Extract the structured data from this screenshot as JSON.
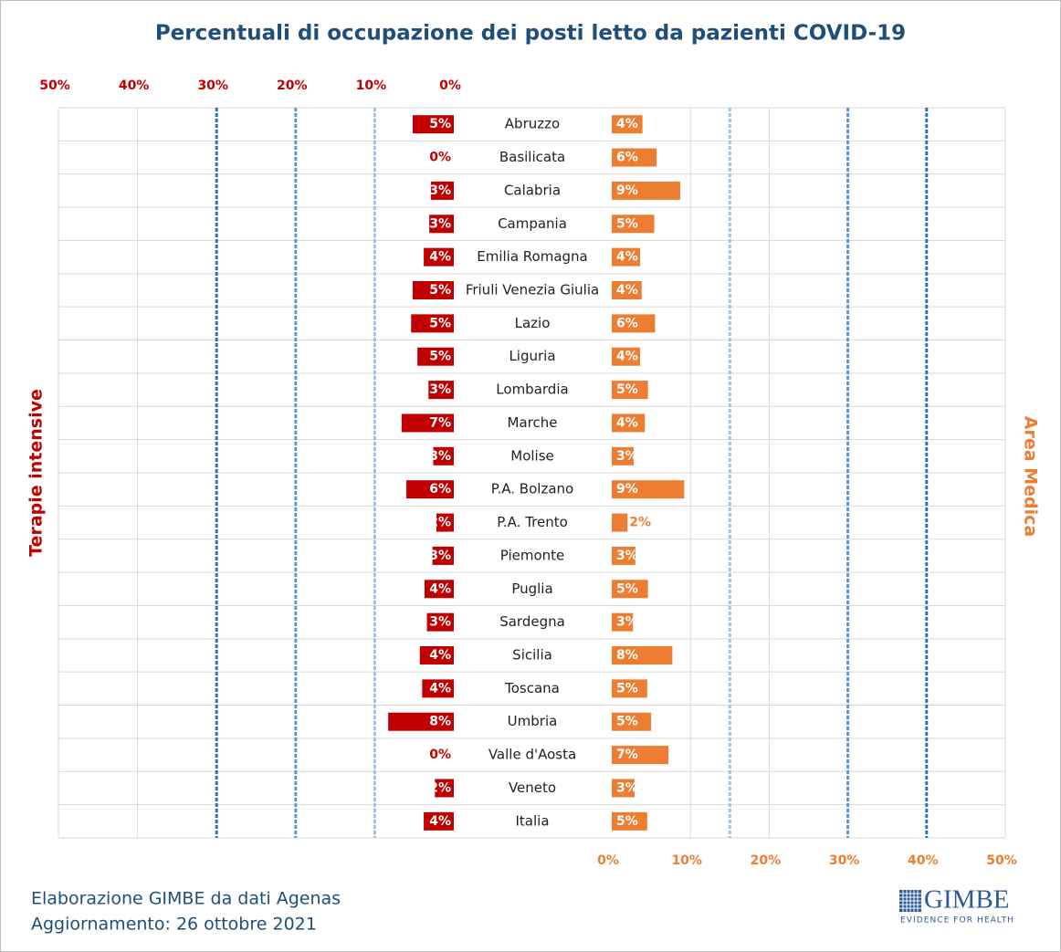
{
  "chart_data": {
    "type": "butterfly",
    "title": "Percentuali di occupazione dei posti letto da pazienti COVID-19",
    "categories": [
      "Abruzzo",
      "Basilicata",
      "Calabria",
      "Campania",
      "Emilia Romagna",
      "Friuli Venezia Giulia",
      "Lazio",
      "Liguria",
      "Lombardia",
      "Marche",
      "Molise",
      "P.A. Bolzano",
      "P.A. Trento",
      "Piemonte",
      "Puglia",
      "Sardegna",
      "Sicilia",
      "Toscana",
      "Umbria",
      "Valle d'Aosta",
      "Veneto",
      "Italia"
    ],
    "series": [
      {
        "name": "Terapie intensive",
        "color": "#c00000",
        "axis": "x1",
        "values": [
          5.2,
          0,
          2.9,
          3.1,
          3.8,
          5.2,
          5.4,
          4.6,
          3.2,
          6.6,
          2.6,
          6.0,
          2.2,
          2.7,
          3.7,
          3.4,
          4.3,
          4.0,
          8.3,
          0,
          2.4,
          3.8
        ],
        "value_labels": [
          "5%",
          "0%",
          "3%",
          "3%",
          "4%",
          "5%",
          "5%",
          "5%",
          "3%",
          "7%",
          "3%",
          "6%",
          "2%",
          "3%",
          "4%",
          "3%",
          "4%",
          "4%",
          "8%",
          "0%",
          "2%",
          "4%"
        ],
        "thresholds": [
          {
            "value": 10,
            "color": "#9dc3e6"
          },
          {
            "value": 20,
            "color": "#5b9bd5"
          },
          {
            "value": 30,
            "color": "#2e75b6"
          }
        ]
      },
      {
        "name": "Area Medica",
        "color": "#ed7d31",
        "axis": "x2",
        "values": [
          3.9,
          5.7,
          8.7,
          5.4,
          3.6,
          3.8,
          5.5,
          3.6,
          4.6,
          4.2,
          2.8,
          9.2,
          2.0,
          3.0,
          4.6,
          2.7,
          7.7,
          4.5,
          5.0,
          7.2,
          2.9,
          4.5
        ],
        "value_labels": [
          "4%",
          "6%",
          "9%",
          "5%",
          "4%",
          "4%",
          "6%",
          "4%",
          "5%",
          "4%",
          "3%",
          "9%",
          "2%",
          "3%",
          "5%",
          "3%",
          "8%",
          "5%",
          "5%",
          "7%",
          "3%",
          "5%"
        ],
        "thresholds": [
          {
            "value": 15,
            "color": "#9dc3e6"
          },
          {
            "value": 30,
            "color": "#5b9bd5"
          },
          {
            "value": 40,
            "color": "#2e75b6"
          }
        ]
      }
    ],
    "x1lim": [
      50,
      0
    ],
    "x1ticks": [
      {
        "value": 50,
        "label": "50%"
      },
      {
        "value": 40,
        "label": "40%"
      },
      {
        "value": 30,
        "label": "30%"
      },
      {
        "value": 20,
        "label": "20%"
      },
      {
        "value": 10,
        "label": "10%"
      },
      {
        "value": 0,
        "label": "0%"
      }
    ],
    "x2lim": [
      0,
      50
    ],
    "x2ticks": [
      {
        "value": 0,
        "label": "0%"
      },
      {
        "value": 10,
        "label": "10%"
      },
      {
        "value": 20,
        "label": "20%"
      },
      {
        "value": 30,
        "label": "30%"
      },
      {
        "value": 40,
        "label": "40%"
      },
      {
        "value": 50,
        "label": "50%"
      }
    ],
    "grid": true
  },
  "footer": {
    "line1": "Elaborazione GIMBE da dati Agenas",
    "line2": "Aggiornamento: 26 ottobre 2021"
  },
  "logo": {
    "name": "GIMBE",
    "tagline": "EVIDENCE FOR HEALTH"
  }
}
